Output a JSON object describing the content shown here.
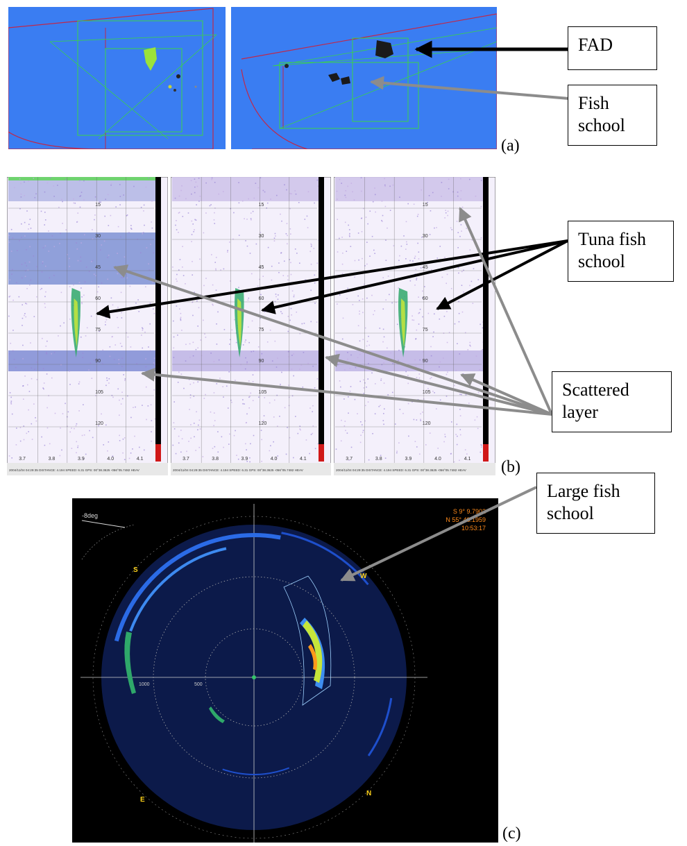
{
  "panels": [
    {
      "id": "a",
      "label": "(a)"
    },
    {
      "id": "b",
      "label": "(b)"
    },
    {
      "id": "c",
      "label": "(c)"
    }
  ],
  "callouts": {
    "fad": "FAD",
    "fish_school": [
      "Fish",
      "school"
    ],
    "tuna_fish_school": [
      "Tuna fish",
      "school"
    ],
    "scattered_layer": [
      "Scattered",
      "layer"
    ],
    "large_fish_school": [
      "Large fish",
      "school"
    ]
  },
  "echogram": {
    "depth_ticks": [
      "15",
      "30",
      "45",
      "60",
      "75",
      "90",
      "105",
      "120"
    ],
    "x_ticks": [
      "3.7",
      "3.8",
      "3.9",
      "4.0",
      "4.1"
    ],
    "footer_left": "2004/11/04 04:29:35  DISTANCE: 4.194  SPEED: 6.31  GPS: 00°38.3625 -056°05.7482  HEAV"
  },
  "sonar": {
    "tilt": "-8deg",
    "readout": [
      "S  9° 9.7902",
      "N  55° 48.1959",
      "10:53:17"
    ],
    "compass": {
      "S": "S",
      "W": "W",
      "E": "E",
      "N": "N"
    },
    "range_labels": [
      "1000",
      "500"
    ]
  },
  "colors": {
    "panel_a_bg": "#3a7df2",
    "sonar_bg": "#000000",
    "sonar_disc": "#0c1a4a",
    "echo_bg": "#f4f0fb",
    "arrow_black": "#000000",
    "arrow_gray": "#8c8c8c",
    "readout_orange": "#ff8a1a",
    "compass_yellow": "#ffd21a"
  }
}
